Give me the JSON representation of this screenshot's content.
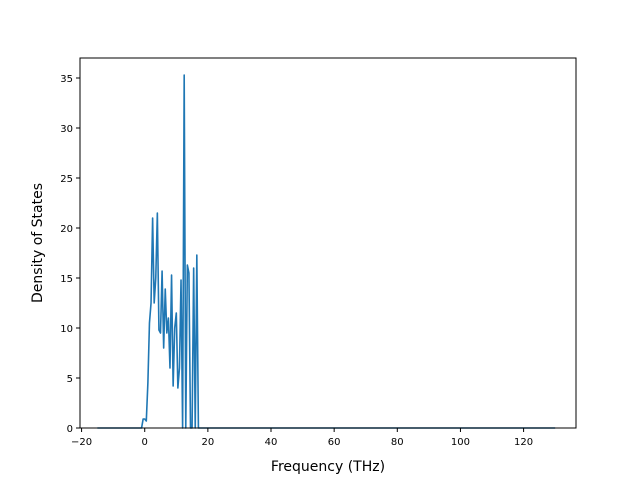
{
  "chart_data": {
    "type": "line",
    "title": "",
    "xlabel": "Frequency (THz)",
    "ylabel": "Density of States",
    "xlim": [
      -20.5,
      136.6
    ],
    "ylim": [
      0,
      37
    ],
    "xticks": [
      -20,
      0,
      20,
      40,
      60,
      80,
      100,
      120
    ],
    "xtick_labels": [
      "−20",
      "0",
      "20",
      "40",
      "60",
      "80",
      "100",
      "120"
    ],
    "yticks": [
      0,
      5,
      10,
      15,
      20,
      25,
      30,
      35
    ],
    "ytick_labels": [
      "0",
      "5",
      "10",
      "15",
      "20",
      "25",
      "30",
      "35"
    ],
    "grid": false,
    "legend": "none",
    "series": [
      {
        "color": "#1f77b4",
        "x": [
          -15.0,
          -1.0,
          -0.5,
          0.0,
          0.5,
          1.0,
          1.5,
          2.0,
          2.5,
          3.0,
          3.5,
          4.0,
          4.5,
          5.0,
          5.5,
          6.0,
          6.5,
          7.0,
          7.5,
          8.0,
          8.5,
          9.0,
          9.5,
          10.0,
          10.5,
          11.0,
          11.5,
          12.0,
          12.5,
          13.0,
          13.5,
          14.0,
          14.5,
          15.0,
          15.5,
          16.0,
          16.5,
          17.0,
          17.5,
          18.0,
          18.5,
          19.0,
          19.5,
          20.0,
          20.5,
          21.0,
          21.5,
          22.0,
          22.5,
          23.0,
          23.5,
          24.0,
          24.5,
          25.0,
          130.0
        ],
        "y": [
          0,
          0,
          0.9,
          0.9,
          0.7,
          4.5,
          10.5,
          12.5,
          21.0,
          12.5,
          15.0,
          21.5,
          9.8,
          9.5,
          15.7,
          8.0,
          13.9,
          9.5,
          11.0,
          6.0,
          15.3,
          4.2,
          10.0,
          11.5,
          4.0,
          6.0,
          14.8,
          0.0,
          35.3,
          0.0,
          16.3,
          15.5,
          0.0,
          0.0,
          16.0,
          0.0,
          17.3,
          0.0,
          0.0,
          0.0,
          0.0,
          0.0,
          0.0,
          0.0,
          0.0,
          0.0,
          0.0,
          0.0,
          0.0,
          0.0,
          0.0,
          0.0,
          0.0,
          0.0,
          0
        ]
      }
    ]
  }
}
